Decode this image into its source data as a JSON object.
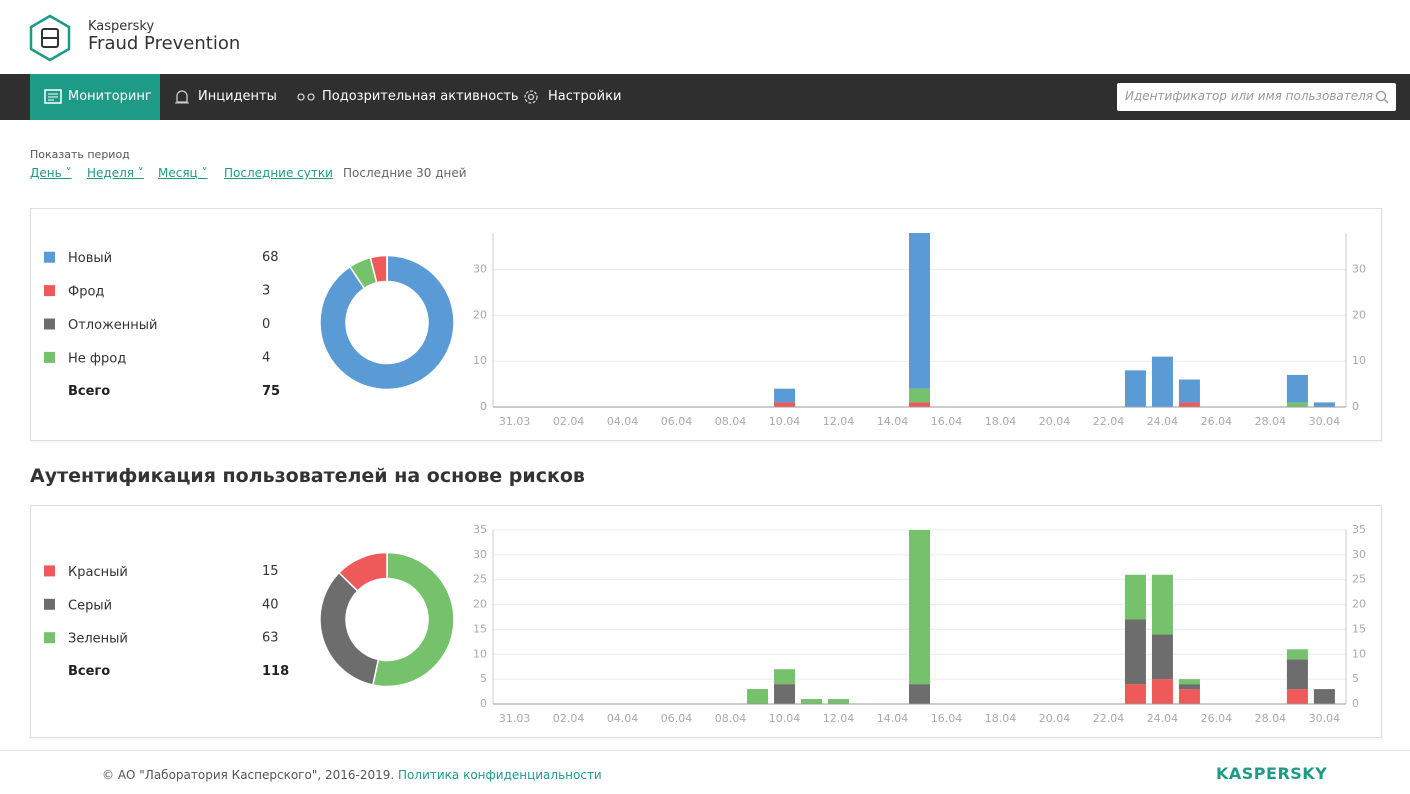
{
  "header": {
    "brand": "Kaspersky",
    "product": "Fraud Prevention"
  },
  "nav": {
    "items": [
      "Мониторинг",
      "Инциденты",
      "Подозрительная активность",
      "Настройки"
    ],
    "search_placeholder": "Идентификатор или имя пользователя"
  },
  "period": {
    "label": "Показать период",
    "options": [
      "День",
      "Неделя",
      "Месяц",
      "Последние сутки",
      "Последние 30 дней"
    ]
  },
  "section_title": "Аутентификация пользователей на основе рисков",
  "panels": [
    {
      "total_label": "Всего",
      "total": 75,
      "chart": {
        "type": "bar",
        "stacked": true,
        "grid": true,
        "categories": [
          "31.03",
          null,
          "02.04",
          null,
          "04.04",
          null,
          "06.04",
          null,
          "08.04",
          null,
          "10.04",
          null,
          "12.04",
          null,
          "14.04",
          null,
          "16.04",
          null,
          "18.04",
          null,
          "20.04",
          null,
          "22.04",
          null,
          "24.04",
          null,
          "26.04",
          null,
          "28.04",
          null,
          "30.04"
        ],
        "ylim": [
          0,
          38
        ],
        "yticks": [
          0,
          10,
          20,
          30
        ],
        "series": [
          {
            "name": "Новый",
            "color": "#5b9bd5",
            "total": 68,
            "values": [
              0,
              0,
              0,
              0,
              0,
              0,
              0,
              0,
              0,
              0,
              3,
              0,
              0,
              0,
              0,
              34,
              0,
              0,
              0,
              0,
              0,
              0,
              0,
              8,
              11,
              5,
              0,
              0,
              0,
              6,
              1
            ]
          },
          {
            "name": "Фрод",
            "color": "#ee5a5a",
            "total": 3,
            "values": [
              0,
              0,
              0,
              0,
              0,
              0,
              0,
              0,
              0,
              0,
              1,
              0,
              0,
              0,
              0,
              1,
              0,
              0,
              0,
              0,
              0,
              0,
              0,
              0,
              0,
              1,
              0,
              0,
              0,
              0,
              0
            ]
          },
          {
            "name": "Отложенный",
            "color": "#6d6d6d",
            "total": 0,
            "values": [
              0,
              0,
              0,
              0,
              0,
              0,
              0,
              0,
              0,
              0,
              0,
              0,
              0,
              0,
              0,
              0,
              0,
              0,
              0,
              0,
              0,
              0,
              0,
              0,
              0,
              0,
              0,
              0,
              0,
              0,
              0
            ]
          },
          {
            "name": "Не фрод",
            "color": "#76c16b",
            "total": 4,
            "values": [
              0,
              0,
              0,
              0,
              0,
              0,
              0,
              0,
              0,
              0,
              0,
              0,
              0,
              0,
              0,
              3,
              0,
              0,
              0,
              0,
              0,
              0,
              0,
              0,
              0,
              0,
              0,
              0,
              0,
              1,
              0
            ]
          }
        ]
      }
    },
    {
      "total_label": "Всего",
      "total": 118,
      "chart": {
        "type": "bar",
        "stacked": true,
        "grid": true,
        "categories": [
          "31.03",
          null,
          "02.04",
          null,
          "04.04",
          null,
          "06.04",
          null,
          "08.04",
          null,
          "10.04",
          null,
          "12.04",
          null,
          "14.04",
          null,
          "16.04",
          null,
          "18.04",
          null,
          "20.04",
          null,
          "22.04",
          null,
          "24.04",
          null,
          "26.04",
          null,
          "28.04",
          null,
          "30.04"
        ],
        "ylim": [
          0,
          35
        ],
        "yticks": [
          0,
          5,
          10,
          15,
          20,
          25,
          30,
          35
        ],
        "series": [
          {
            "name": "Красный",
            "color": "#ee5a5a",
            "total": 15,
            "values": [
              0,
              0,
              0,
              0,
              0,
              0,
              0,
              0,
              0,
              0,
              0,
              0,
              0,
              0,
              0,
              0,
              0,
              0,
              0,
              0,
              0,
              0,
              0,
              4,
              5,
              3,
              0,
              0,
              0,
              3,
              0
            ]
          },
          {
            "name": "Серый",
            "color": "#6d6d6d",
            "total": 40,
            "values": [
              0,
              0,
              0,
              0,
              0,
              0,
              0,
              0,
              0,
              0,
              4,
              0,
              0,
              0,
              0,
              4,
              0,
              0,
              0,
              0,
              0,
              0,
              0,
              13,
              9,
              1,
              0,
              0,
              0,
              6,
              3
            ]
          },
          {
            "name": "Зеленый",
            "color": "#76c16b",
            "total": 63,
            "values": [
              0,
              0,
              0,
              0,
              0,
              0,
              0,
              0,
              0,
              3,
              3,
              1,
              1,
              0,
              0,
              31,
              0,
              0,
              0,
              0,
              0,
              0,
              0,
              9,
              12,
              1,
              0,
              0,
              0,
              2,
              0
            ]
          }
        ]
      }
    }
  ],
  "footer": {
    "copyright": "© АО \"Лаборатория Касперского\", 2016-2019.",
    "link": "Политика конфиденциальности",
    "logo": "KASPERSKY"
  }
}
